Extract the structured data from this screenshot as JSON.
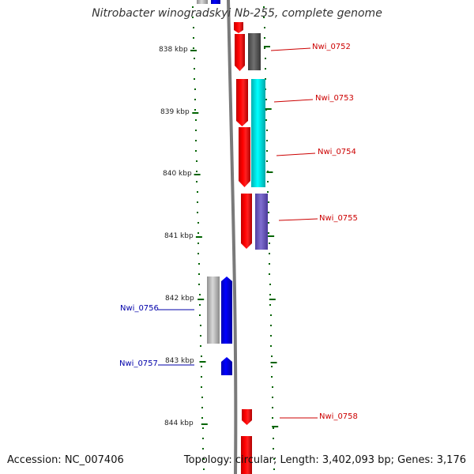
{
  "title": "Nitrobacter winogradskyi Nb-255, complete genome",
  "footer": {
    "accession": "Accession: NC_007406",
    "meta": "Topology: circular; Length: 3,402,093 bp; Genes: 3,176"
  },
  "ticks": [
    "838 kbp",
    "839 kbp",
    "840 kbp",
    "841 kbp",
    "842 kbp",
    "843 kbp",
    "844 kbp"
  ],
  "colors": {
    "forward": "#ff0000",
    "reverse": "#0000ff",
    "backbone": "#808080",
    "tick_mark": "#006400",
    "label_forward": "#cc0000",
    "label_reverse": "#0000aa"
  },
  "genes": [
    {
      "id": "Nwi_0752",
      "strand": "+",
      "labeled": true,
      "homolog_color": "#606060"
    },
    {
      "id": "Nwi_0753",
      "strand": "+",
      "labeled": true,
      "homolog_color": "#00e5e5"
    },
    {
      "id": "Nwi_0754",
      "strand": "+",
      "labeled": true,
      "homolog_color": "#00e5e5"
    },
    {
      "id": "Nwi_0755",
      "strand": "+",
      "labeled": true,
      "homolog_color": "#7060c0"
    },
    {
      "id": "Nwi_0756",
      "strand": "-",
      "labeled": true,
      "homolog_color": "#b8b8b8"
    },
    {
      "id": "Nwi_0757",
      "strand": "-",
      "labeled": true
    },
    {
      "id": "Nwi_0758",
      "strand": "+",
      "labeled": true
    }
  ]
}
